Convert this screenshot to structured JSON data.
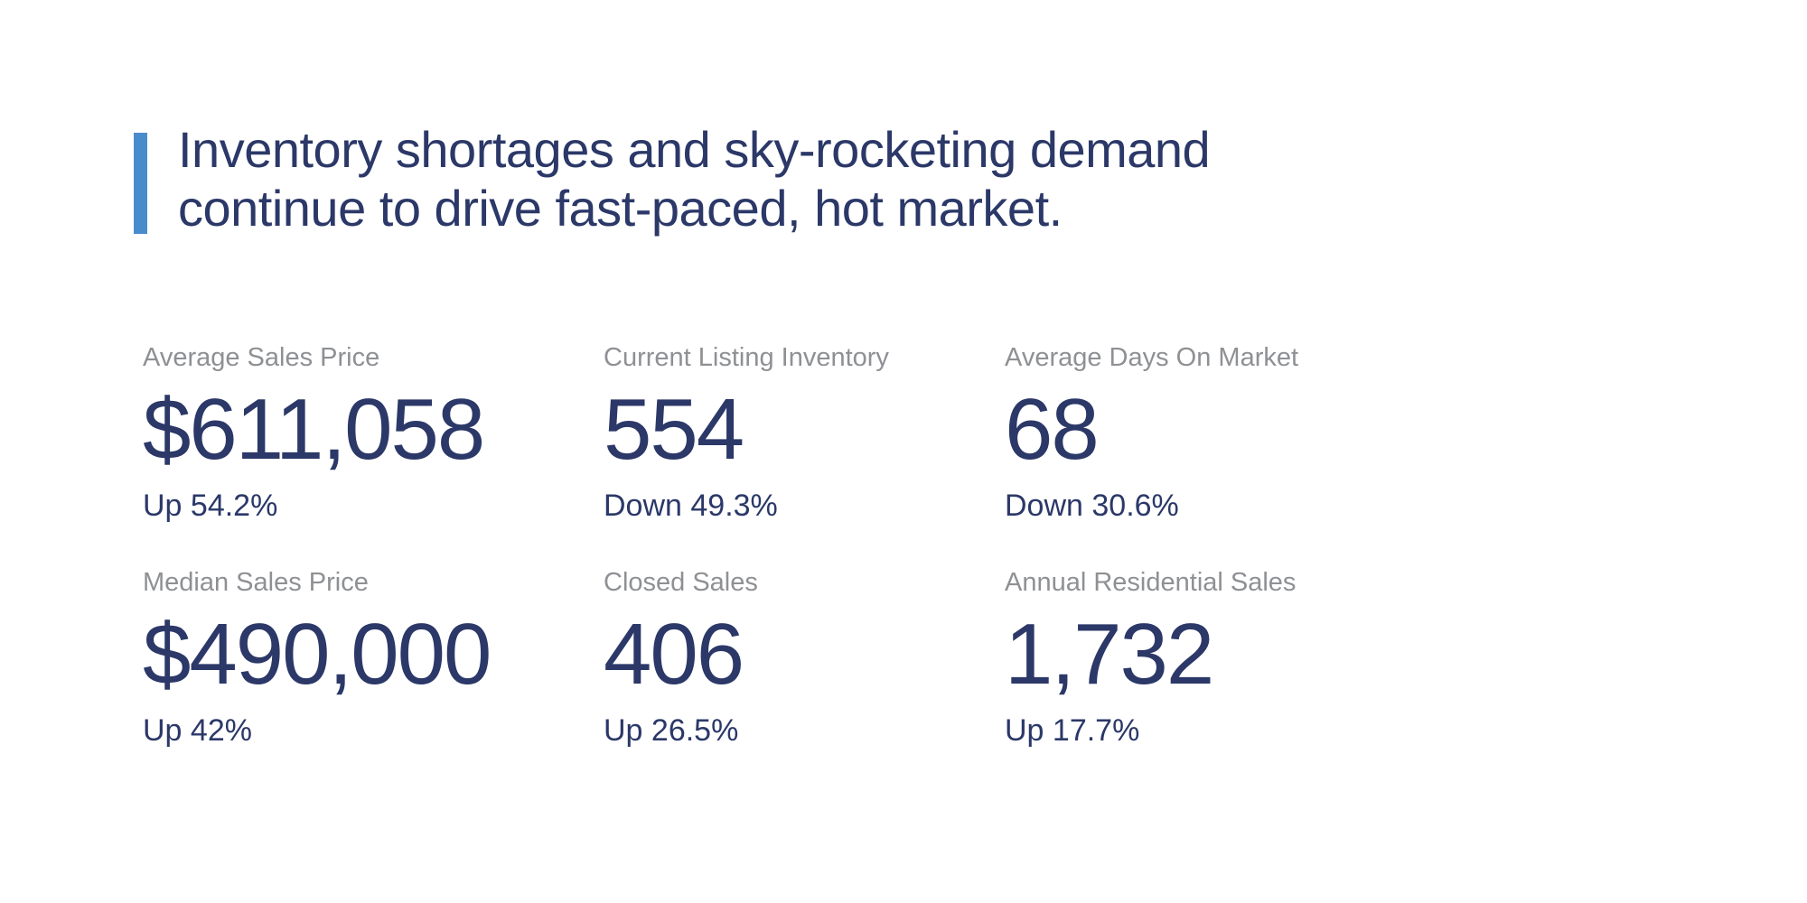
{
  "colors": {
    "navy": "#2B3868",
    "label_gray": "#8E9094",
    "accent_blue": "#4A8CCB",
    "background": "#FFFFFF"
  },
  "headline": {
    "line1": "Inventory shortages and sky-rocketing demand",
    "line2": "continue to drive fast-paced, hot market."
  },
  "stats": [
    {
      "label": "Average Sales Price",
      "value": "$611,058",
      "change": "Up 54.2%"
    },
    {
      "label": "Current Listing Inventory",
      "value": "554",
      "change": "Down 49.3%"
    },
    {
      "label": "Average Days On Market",
      "value": "68",
      "change": "Down 30.6%"
    },
    {
      "label": "Median Sales Price",
      "value": "$490,000",
      "change": "Up 42%"
    },
    {
      "label": "Closed Sales",
      "value": "406",
      "change": "Up 26.5%"
    },
    {
      "label": "Annual Residential Sales",
      "value": "1,732",
      "change": "Up 17.7%"
    }
  ]
}
